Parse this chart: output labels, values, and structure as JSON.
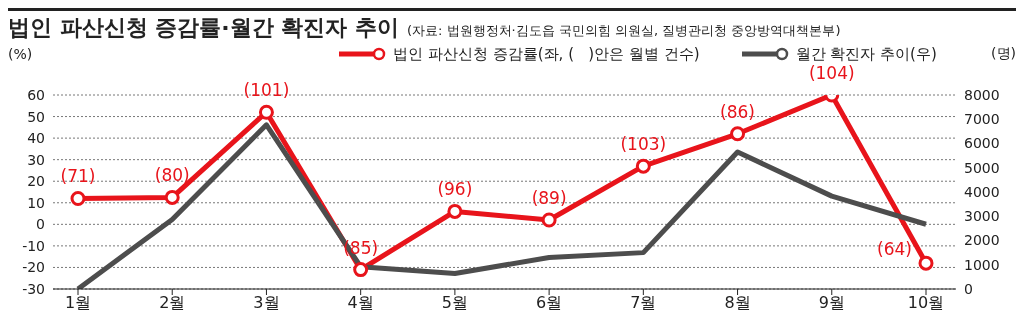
{
  "chart_data": {
    "type": "line",
    "title": "법인 파산신청 증감률·월간 확진자 추이",
    "annotations": [
      "(자료: 법원행정처·김도읍 국민의힘 의원실, 질병관리청 중앙방역대책본부)",
      {
        "text": "(71)",
        "x": "1월",
        "y": 12
      },
      {
        "text": "(80)",
        "x": "2월",
        "y": 12.5
      },
      {
        "text": "(101)",
        "x": "3월",
        "y": 52
      },
      {
        "text": "(85)",
        "x": "4월",
        "y": -21
      },
      {
        "text": "(96)",
        "x": "5월",
        "y": 6
      },
      {
        "text": "(89)",
        "x": "6월",
        "y": 2
      },
      {
        "text": "(103)",
        "x": "7월",
        "y": 27
      },
      {
        "text": "(86)",
        "x": "8월",
        "y": 42
      },
      {
        "text": "(104)",
        "x": "9월",
        "y": 60
      },
      {
        "text": "(64)",
        "x": "10월",
        "y": -18
      }
    ],
    "ylabel": "(%)",
    "y2label": "(명)",
    "categories": [
      "1월",
      "2월",
      "3월",
      "4월",
      "5월",
      "6월",
      "7월",
      "8월",
      "9월",
      "10월"
    ],
    "series": [
      {
        "name": "법인 파산신청 증감률(좌, (   )안은 월별 건수)",
        "color": "#e8141b",
        "values": [
          12,
          12.5,
          52,
          -21,
          6,
          2,
          27,
          42,
          60,
          -18
        ],
        "marker": "circle"
      },
      {
        "name": "월간 확진자 추이(우)",
        "color": "#4d4d4d",
        "axis": "y2",
        "values": [
          0,
          2870,
          6770,
          920,
          640,
          1300,
          1500,
          5650,
          3830,
          2670
        ],
        "marker": "none"
      }
    ],
    "ylim": [
      -30,
      60
    ],
    "yticks": [
      -30,
      -20,
      -10,
      0,
      10,
      20,
      30,
      40,
      50,
      60
    ],
    "y2lim": [
      0,
      8000
    ],
    "y2ticks": [
      0,
      1000,
      2000,
      3000,
      4000,
      5000,
      6000,
      7000,
      8000
    ],
    "grid": "y",
    "legend": "top",
    "line_style": "solid"
  }
}
